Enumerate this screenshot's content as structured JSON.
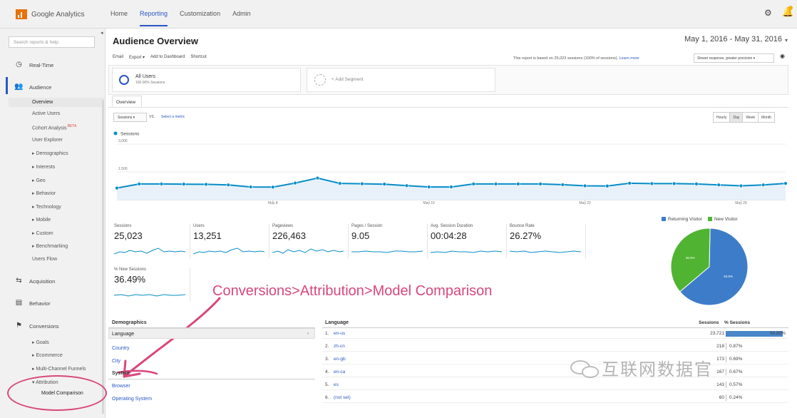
{
  "app": {
    "name": "Google Analytics"
  },
  "topnav": [
    "Home",
    "Reporting",
    "Customization",
    "Admin"
  ],
  "sidebar": {
    "search_placeholder": "Search reports & help",
    "realtime": "Real-Time",
    "audience": "Audience",
    "audience_items": [
      "Overview",
      "Active Users",
      "Cohort Analysis",
      "User Explorer",
      "▸ Demographics",
      "▸ Interests",
      "▸ Geo",
      "▸ Behavior",
      "▸ Technology",
      "▸ Mobile",
      "▸ Custom",
      "▸ Benchmarking",
      "Users Flow"
    ],
    "new_badge": "BETA",
    "acquisition": "Acquisition",
    "behavior": "Behavior",
    "conversions": "Conversions",
    "conversion_items": [
      "▸ Goals",
      "▸ Ecommerce",
      "▸ Multi-Channel Funnels",
      "▾ Attribution",
      "Model Comparison"
    ]
  },
  "header": {
    "title": "Audience Overview",
    "date_range": "May 1, 2016 - May 31, 2016",
    "actions": [
      "Email",
      "Export ▾",
      "Add to Dashboard",
      "Shortcut"
    ],
    "report_note": "This report is based on 25,023 sessions (100% of sessions).",
    "learn_more": "Learn more",
    "sampling": "Slower response, greater precision"
  },
  "segments": {
    "all_users_title": "All Users",
    "all_users_sub": "100.00% Sessions",
    "add_segment": "+ Add Segment"
  },
  "tabs": {
    "overview": "Overview"
  },
  "chart_controls": {
    "metric": "Sessions ▾",
    "vs": "VS.",
    "select_metric": "Select a metric",
    "granularity": [
      "Hourly",
      "Day",
      "Week",
      "Month"
    ],
    "active_granularity": "Day"
  },
  "chart_data": {
    "type": "area",
    "series": [
      {
        "name": "Sessions",
        "color": "#058dc7",
        "values": [
          630,
          850,
          850,
          840,
          830,
          800,
          690,
          680,
          900,
          1170,
          880,
          860,
          840,
          760,
          690,
          690,
          850,
          850,
          850,
          850,
          810,
          750,
          740,
          890,
          870,
          870,
          850,
          800,
          750,
          800,
          880
        ]
      }
    ],
    "x_tick_labels": [
      "May 8",
      "May 15",
      "May 22",
      "May 29"
    ],
    "y_tick_labels": [
      "3,000",
      "1,500"
    ],
    "ylim": [
      0,
      3000
    ]
  },
  "scorecards": [
    {
      "label": "Sessions",
      "value": "25,023"
    },
    {
      "label": "Users",
      "value": "13,251"
    },
    {
      "label": "Pageviews",
      "value": "226,463"
    },
    {
      "label": "Pages / Session",
      "value": "9.05"
    },
    {
      "label": "Avg. Session Duration",
      "value": "00:04:28"
    },
    {
      "label": "Bounce Rate",
      "value": "26.27%"
    },
    {
      "label": "% New Sessions",
      "value": "36.49%"
    }
  ],
  "pie": {
    "legend": [
      {
        "name": "Returning Visitor",
        "color": "#3d7cc9"
      },
      {
        "name": "New Visitor",
        "color": "#50b432"
      }
    ],
    "slices": [
      {
        "label": "63.5%",
        "value": 63.5,
        "color": "#3d7cc9"
      },
      {
        "label": "36.5%",
        "value": 36.5,
        "color": "#50b432"
      }
    ]
  },
  "annotation": "Conversions>Attribution>Model Comparison",
  "demographics": {
    "title": "Demographics",
    "language": "Language",
    "links": [
      "Country",
      "City"
    ],
    "system_title": "System",
    "system_links": [
      "Browser",
      "Operating System"
    ]
  },
  "language_table": {
    "headers": {
      "language": "Language",
      "sessions": "Sessions",
      "pct": "% Sessions"
    },
    "rows": [
      {
        "idx": "1.",
        "code": "en-us",
        "sessions": "23,721",
        "pct": "94.80%",
        "share": 0.948
      },
      {
        "idx": "2.",
        "code": "zh-cn",
        "sessions": "218",
        "pct": "0.87%",
        "share": 0.0087
      },
      {
        "idx": "3.",
        "code": "en-gb",
        "sessions": "173",
        "pct": "0.69%",
        "share": 0.0069
      },
      {
        "idx": "4.",
        "code": "en-ca",
        "sessions": "167",
        "pct": "0.67%",
        "share": 0.0067
      },
      {
        "idx": "5.",
        "code": "es",
        "sessions": "143",
        "pct": "0.57%",
        "share": 0.0057
      },
      {
        "idx": "6.",
        "code": "(not set)",
        "sessions": "60",
        "pct": "0.24%",
        "share": 0.0024
      }
    ]
  },
  "watermark": "互联网数据官"
}
